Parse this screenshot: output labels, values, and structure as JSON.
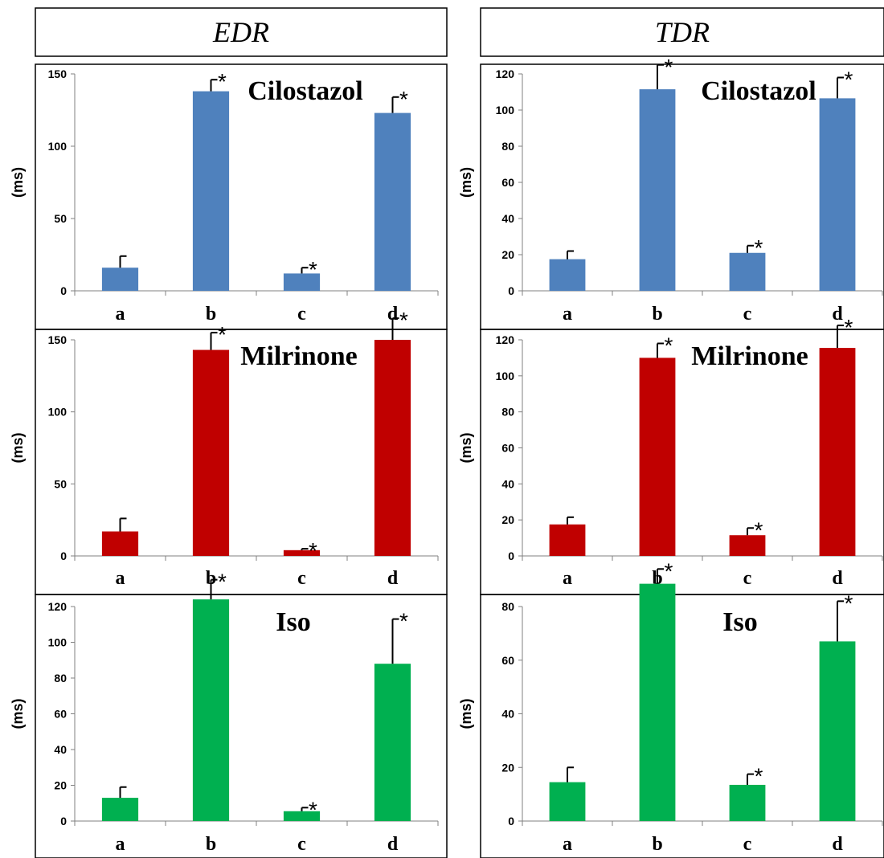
{
  "headers": {
    "left": "EDR",
    "right": "TDR"
  },
  "chart_data": [
    {
      "type": "bar",
      "column": "EDR",
      "drug": "Cilostazol",
      "color": "#4f81bd",
      "ylabel": "(ms)",
      "ylim": [
        0,
        150
      ],
      "yticks": [
        0,
        50,
        100,
        150
      ],
      "categories": [
        "a",
        "b",
        "c",
        "d"
      ],
      "values": [
        16,
        138,
        12,
        123
      ],
      "errors": [
        8,
        8,
        4,
        11
      ],
      "significant": [
        "",
        "*",
        "*",
        "*"
      ]
    },
    {
      "type": "bar",
      "column": "TDR",
      "drug": "Cilostazol",
      "color": "#4f81bd",
      "ylabel": "(ms)",
      "ylim": [
        0,
        120
      ],
      "yticks": [
        0,
        20,
        40,
        60,
        80,
        100,
        120
      ],
      "categories": [
        "a",
        "b",
        "c",
        "d"
      ],
      "values": [
        17.5,
        111.5,
        21,
        106.5
      ],
      "errors": [
        4.5,
        13.5,
        4,
        11.5
      ],
      "significant": [
        "",
        "*",
        "*",
        "*"
      ]
    },
    {
      "type": "bar",
      "column": "EDR",
      "drug": "Milrinone",
      "color": "#c00000",
      "ylabel": "(ms)",
      "ylim": [
        0,
        150
      ],
      "yticks": [
        0,
        50,
        100,
        150
      ],
      "categories": [
        "a",
        "b",
        "c",
        "d"
      ],
      "values": [
        17,
        143,
        4,
        150
      ],
      "errors": [
        9,
        12,
        1,
        15
      ],
      "significant": [
        "",
        "*",
        "*",
        "*"
      ]
    },
    {
      "type": "bar",
      "column": "TDR",
      "drug": "Milrinone",
      "color": "#c00000",
      "ylabel": "(ms)",
      "ylim": [
        0,
        120
      ],
      "yticks": [
        0,
        20,
        40,
        60,
        80,
        100,
        120
      ],
      "categories": [
        "a",
        "b",
        "c",
        "d"
      ],
      "values": [
        17.5,
        110,
        11.5,
        115.5
      ],
      "errors": [
        4,
        8,
        4,
        12.5
      ],
      "significant": [
        "",
        "*",
        "*",
        "*"
      ]
    },
    {
      "type": "bar",
      "column": "EDR",
      "drug": "Iso",
      "color": "#00b050",
      "ylabel": "(ms)",
      "ylim": [
        0,
        120
      ],
      "yticks": [
        0,
        20,
        40,
        60,
        80,
        100,
        120
      ],
      "categories": [
        "a",
        "b",
        "c",
        "d"
      ],
      "values": [
        13,
        124,
        5.5,
        88
      ],
      "errors": [
        6,
        11,
        2,
        25
      ],
      "significant": [
        "",
        "*",
        "*",
        "*"
      ]
    },
    {
      "type": "bar",
      "column": "TDR",
      "drug": "Iso",
      "color": "#00b050",
      "ylabel": "(ms)",
      "ylim": [
        0,
        80
      ],
      "yticks": [
        0,
        20,
        40,
        60,
        80
      ],
      "categories": [
        "a",
        "b",
        "c",
        "d"
      ],
      "values": [
        14.5,
        88.5,
        13.5,
        67
      ],
      "errors": [
        5.5,
        5.5,
        4,
        15
      ],
      "significant": [
        "",
        "*",
        "*",
        "*"
      ]
    }
  ]
}
